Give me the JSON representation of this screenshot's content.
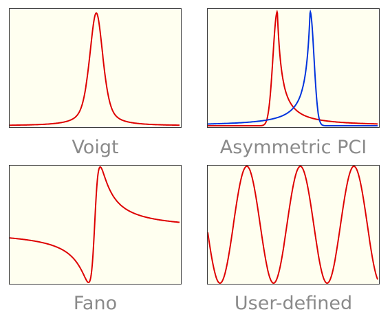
{
  "panels": [
    {
      "id": "voigt",
      "caption": "Voigt",
      "curves": [
        {
          "kind": "voigt",
          "color": "#dd0000"
        }
      ]
    },
    {
      "id": "asymmetric-pci",
      "caption": "Asymmetric PCI",
      "curves": [
        {
          "kind": "pci-left",
          "color": "#dd0000"
        },
        {
          "kind": "pci-right",
          "color": "#0033dd"
        }
      ]
    },
    {
      "id": "fano",
      "caption": "Fano",
      "curves": [
        {
          "kind": "fano",
          "color": "#dd0000"
        }
      ]
    },
    {
      "id": "user-defined",
      "caption": "User-defined",
      "curves": [
        {
          "kind": "sine",
          "color": "#dd0000"
        }
      ]
    }
  ],
  "colors": {
    "plot_background": "#fffff0",
    "border": "#3c3c3c",
    "caption": "#8a8a8a"
  }
}
